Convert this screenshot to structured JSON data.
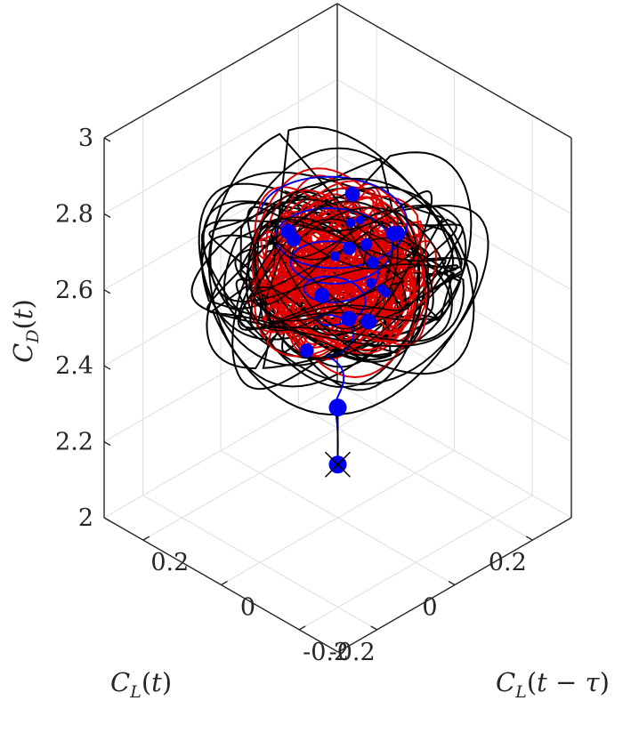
{
  "chart_data": {
    "type": "line",
    "projection": "3d",
    "title": "",
    "xlabel": {
      "var": "C",
      "sub": "L",
      "arg": "t"
    },
    "ylabel": {
      "var": "C",
      "sub": "L",
      "arg": "t − τ"
    },
    "zlabel": {
      "var": "C",
      "sub": "D",
      "arg": "t"
    },
    "xlim": [
      -0.3,
      0.3
    ],
    "ylim": [
      -0.3,
      0.3
    ],
    "zlim": [
      2,
      3
    ],
    "x_ticks": [
      "-0.2",
      "0",
      "0.2"
    ],
    "y_ticks": [
      "-0.2",
      "0",
      "0.2"
    ],
    "z_ticks": [
      "2",
      "2.2",
      "2.4",
      "2.6",
      "2.8",
      "3"
    ],
    "grid": true,
    "box": true,
    "series": [
      {
        "color": "#000000",
        "style": "line",
        "description_values": {
          "radius_range": [
            0.08,
            0.26
          ],
          "cd_range": [
            2.45,
            2.8
          ]
        }
      },
      {
        "color": "#e00000",
        "style": "line",
        "description_values": {
          "radius_range": [
            0.04,
            0.17
          ],
          "cd_range": [
            2.5,
            2.78
          ]
        }
      },
      {
        "color": "#0000ee",
        "style": "line+markers",
        "description_values": {
          "radius_range": [
            0.0,
            0.14
          ],
          "cd_range": [
            2.14,
            2.8
          ]
        }
      }
    ],
    "initial_point": {
      "x": 0.0,
      "y": 0.0,
      "z": 2.14,
      "marker": "filled-circle-cross",
      "color": "#0000ee"
    },
    "second_point": {
      "x": 0.0,
      "y": 0.0,
      "z": 2.29,
      "marker": "filled-circle",
      "color": "#0000ee"
    },
    "colors": {
      "axis": "#262626",
      "grid": "#e3e3e3"
    }
  }
}
